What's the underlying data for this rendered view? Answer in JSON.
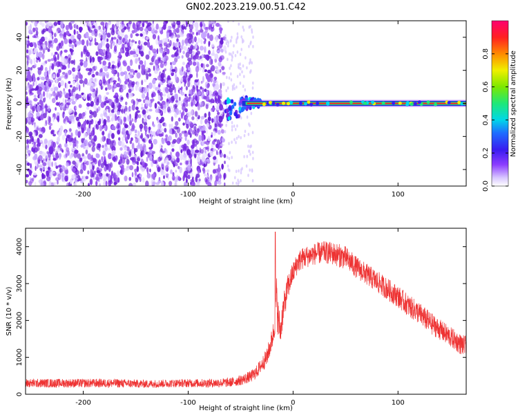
{
  "title": "GN02.2023.219.00.51.C42",
  "colors": {
    "snr_line": "#ee3333",
    "spec_scatter": "#7a2be2",
    "axes": "#000000",
    "background": "#ffffff"
  },
  "chart_data": [
    {
      "type": "heatmap",
      "name": "spectrogram",
      "xlabel": "Height of straight line (km)",
      "ylabel": "Frequency (Hz)",
      "xlim": [
        -255,
        165
      ],
      "ylim": [
        -50,
        50
      ],
      "xticks": [
        -200,
        -100,
        0,
        100
      ],
      "yticks": [
        -40,
        -20,
        0,
        20,
        40
      ],
      "x_tick_labels": [
        "-200",
        "-100",
        "0",
        "100"
      ],
      "y_tick_labels": [
        "-40",
        "-20",
        "0",
        "20",
        "40"
      ],
      "grid": false,
      "noise_region_x": [
        -255,
        -65
      ],
      "signal_band": {
        "x_start": -65,
        "x_end": 165,
        "frequency_hz": 0
      },
      "colorbar": {
        "label": "Normalized spectral amplitude",
        "range": [
          0,
          1
        ],
        "ticks": [
          0.0,
          0.2,
          0.4,
          0.6,
          0.8
        ],
        "tick_labels": [
          "0.0",
          "0.2",
          "0.4",
          "0.6",
          "0.8"
        ],
        "colormap": "rainbow-white"
      }
    },
    {
      "type": "line",
      "name": "snr",
      "xlabel": "Height of straight line (km)",
      "ylabel": "SNR (10 * v/v)",
      "xlim": [
        -255,
        165
      ],
      "ylim": [
        0,
        4500
      ],
      "xticks": [
        -200,
        -100,
        0,
        100
      ],
      "yticks": [
        0,
        1000,
        2000,
        3000,
        4000
      ],
      "x_tick_labels": [
        "-200",
        "-100",
        "0",
        "100"
      ],
      "y_tick_labels": [
        "0",
        "1000",
        "2000",
        "3000",
        "4000"
      ],
      "grid": false,
      "x": [
        -255,
        -230,
        -200,
        -170,
        -140,
        -110,
        -80,
        -60,
        -50,
        -40,
        -35,
        -30,
        -25,
        -20,
        -18,
        -16,
        -14,
        -12,
        -10,
        -5,
        0,
        5,
        10,
        20,
        30,
        40,
        50,
        60,
        70,
        80,
        90,
        100,
        110,
        120,
        130,
        140,
        150,
        160,
        165
      ],
      "y": [
        300,
        300,
        300,
        300,
        280,
        300,
        300,
        320,
        380,
        480,
        600,
        800,
        1000,
        1500,
        1800,
        2600,
        2000,
        1700,
        2200,
        2900,
        3300,
        3600,
        3700,
        3800,
        3850,
        3800,
        3700,
        3450,
        3250,
        3050,
        2850,
        2650,
        2400,
        2200,
        1950,
        1750,
        1550,
        1350,
        1300
      ],
      "noise_amplitude": [
        120,
        120,
        120,
        120,
        110,
        110,
        120,
        130,
        140,
        160,
        180,
        200,
        250,
        300,
        350,
        700,
        500,
        400,
        400,
        350,
        300,
        300,
        300,
        300,
        300,
        320,
        320,
        300,
        300,
        300,
        300,
        300,
        300,
        300,
        300,
        280,
        280,
        280,
        280
      ],
      "spike_peak": {
        "x": -17,
        "y": 4400
      }
    }
  ]
}
